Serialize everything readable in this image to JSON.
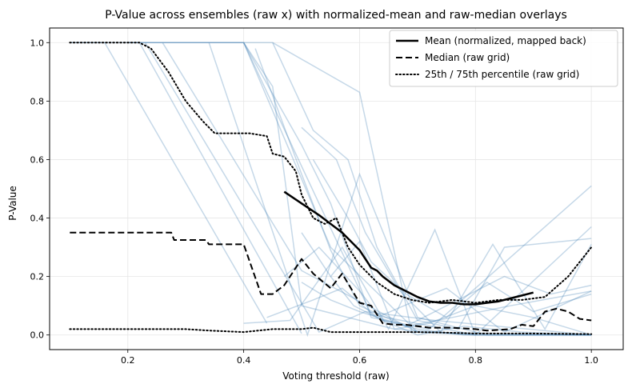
{
  "chart_data": {
    "type": "line",
    "title": "P-Value across ensembles (raw x) with normalized-mean and raw-median overlays",
    "xlabel": "Voting threshold (raw)",
    "ylabel": "P-Value",
    "xlim": [
      0.065,
      1.055
    ],
    "ylim": [
      -0.05,
      1.05
    ],
    "xticks": [
      0.2,
      0.4,
      0.6,
      0.8,
      1.0
    ],
    "xtick_labels": [
      "0.2",
      "0.4",
      "0.6",
      "0.8",
      "1.0"
    ],
    "yticks": [
      0.0,
      0.2,
      0.4,
      0.6,
      0.8,
      1.0
    ],
    "ytick_labels": [
      "0.0",
      "0.2",
      "0.4",
      "0.6",
      "0.8",
      "1.0"
    ],
    "grid": true,
    "legend_position": "top-right",
    "colors": {
      "ensemble": "#4a86b8",
      "overlay": "#000000"
    },
    "series": [
      {
        "name": "Mean (normalized, mapped back)",
        "style": "solid",
        "x": [
          0.47,
          0.5,
          0.53,
          0.55,
          0.57,
          0.59,
          0.6,
          0.61,
          0.62,
          0.63,
          0.64,
          0.66,
          0.68,
          0.7,
          0.72,
          0.74,
          0.76,
          0.78,
          0.8,
          0.82,
          0.84,
          0.86,
          0.88,
          0.9
        ],
        "y": [
          0.49,
          0.45,
          0.41,
          0.38,
          0.35,
          0.31,
          0.29,
          0.26,
          0.23,
          0.22,
          0.2,
          0.17,
          0.15,
          0.13,
          0.115,
          0.11,
          0.11,
          0.105,
          0.105,
          0.11,
          0.115,
          0.125,
          0.135,
          0.145
        ]
      },
      {
        "name": "Median (raw grid)",
        "style": "dashed",
        "x": [
          0.1,
          0.275,
          0.28,
          0.335,
          0.34,
          0.4,
          0.43,
          0.45,
          0.47,
          0.5,
          0.52,
          0.55,
          0.57,
          0.6,
          0.62,
          0.64,
          0.66,
          0.68,
          0.7,
          0.72,
          0.74,
          0.76,
          0.8,
          0.82,
          0.86,
          0.88,
          0.9,
          0.92,
          0.94,
          0.96,
          0.98,
          1.0
        ],
        "y": [
          0.35,
          0.35,
          0.325,
          0.325,
          0.31,
          0.31,
          0.14,
          0.14,
          0.17,
          0.26,
          0.21,
          0.16,
          0.21,
          0.11,
          0.1,
          0.04,
          0.035,
          0.035,
          0.03,
          0.025,
          0.025,
          0.025,
          0.02,
          0.015,
          0.02,
          0.035,
          0.03,
          0.08,
          0.09,
          0.08,
          0.055,
          0.05
        ]
      },
      {
        "name": "25th / 75th percentile (raw grid)",
        "style": "dotted",
        "x": [
          0.1,
          0.22,
          0.24,
          0.27,
          0.3,
          0.33,
          0.35,
          0.38,
          0.41,
          0.44,
          0.45,
          0.47,
          0.49,
          0.5,
          0.52,
          0.54,
          0.56,
          0.58,
          0.6,
          0.63,
          0.66,
          0.69,
          0.72,
          0.76,
          0.8,
          0.84,
          0.88,
          0.92,
          0.96,
          1.0
        ],
        "y": [
          1.0,
          1.0,
          0.98,
          0.9,
          0.8,
          0.73,
          0.69,
          0.69,
          0.69,
          0.68,
          0.62,
          0.61,
          0.56,
          0.48,
          0.4,
          0.38,
          0.4,
          0.3,
          0.24,
          0.18,
          0.14,
          0.12,
          0.11,
          0.12,
          0.11,
          0.12,
          0.12,
          0.13,
          0.2,
          0.3
        ]
      },
      {
        "name": "",
        "style": "dotted",
        "x": [
          0.1,
          0.2,
          0.3,
          0.34,
          0.4,
          0.45,
          0.5,
          0.52,
          0.55,
          0.6,
          0.65,
          0.7,
          0.75,
          0.8,
          0.85,
          0.9,
          0.95,
          1.0
        ],
        "y": [
          0.02,
          0.02,
          0.02,
          0.015,
          0.01,
          0.02,
          0.02,
          0.025,
          0.01,
          0.01,
          0.01,
          0.01,
          0.008,
          0.005,
          0.005,
          0.005,
          0.004,
          0.003
        ]
      }
    ],
    "ensemble_series": [
      {
        "x": [
          0.1,
          0.16,
          0.44
        ],
        "y": [
          1.0,
          1.0,
          0.04
        ]
      },
      {
        "x": [
          0.1,
          0.22,
          0.5
        ],
        "y": [
          1.0,
          1.0,
          0.005
        ]
      },
      {
        "x": [
          0.2,
          0.4,
          0.55,
          0.7
        ],
        "y": [
          1.0,
          1.0,
          0.3,
          0.01
        ]
      },
      {
        "x": [
          0.2,
          0.4,
          0.53,
          0.62,
          0.8
        ],
        "y": [
          1.0,
          1.0,
          0.45,
          0.07,
          0.0
        ]
      },
      {
        "x": [
          0.2,
          0.45,
          0.6,
          0.69,
          1.0
        ],
        "y": [
          1.0,
          1.0,
          0.83,
          0.01,
          0.0
        ]
      },
      {
        "x": [
          0.23,
          0.53,
          0.61,
          0.73,
          1.0
        ],
        "y": [
          1.0,
          0.01,
          0.08,
          0.05,
          0.0
        ]
      },
      {
        "x": [
          0.26,
          0.5,
          0.7,
          0.8,
          1.0
        ],
        "y": [
          1.0,
          0.22,
          0.01,
          0.0,
          0.0
        ]
      },
      {
        "x": [
          0.34,
          0.51,
          0.6,
          0.7,
          0.82,
          1.0
        ],
        "y": [
          1.0,
          0.0,
          0.55,
          0.06,
          0.0,
          0.0
        ]
      },
      {
        "x": [
          0.4,
          0.5,
          0.55,
          0.62,
          0.72,
          1.0
        ],
        "y": [
          1.0,
          0.65,
          0.45,
          0.06,
          0.02,
          0.51
        ]
      },
      {
        "x": [
          0.4,
          0.45,
          0.5,
          0.66,
          0.8,
          1.0
        ],
        "y": [
          1.0,
          0.85,
          0.1,
          0.02,
          0.0,
          0.37
        ]
      },
      {
        "x": [
          0.4,
          0.48,
          0.57,
          0.65,
          0.73,
          0.8,
          1.0
        ],
        "y": [
          0.04,
          0.05,
          0.3,
          0.02,
          0.36,
          0.0,
          0.0
        ]
      },
      {
        "x": [
          0.42,
          0.5,
          0.55,
          0.6,
          0.68,
          0.76,
          0.86,
          1.0
        ],
        "y": [
          0.98,
          0.55,
          0.29,
          0.1,
          0.03,
          0.06,
          0.1,
          0.15
        ]
      },
      {
        "x": [
          0.45,
          0.52,
          0.58,
          0.63,
          0.7,
          0.77,
          0.85,
          1.0
        ],
        "y": [
          1.0,
          0.7,
          0.6,
          0.3,
          0.05,
          0.02,
          0.3,
          0.33
        ]
      },
      {
        "x": [
          0.5,
          0.56,
          0.61,
          0.67,
          0.74,
          0.83,
          0.92,
          1.0
        ],
        "y": [
          0.71,
          0.6,
          0.35,
          0.15,
          0.01,
          0.31,
          0.02,
          0.31
        ]
      },
      {
        "x": [
          0.5,
          0.55,
          0.6,
          0.66,
          0.72,
          0.8,
          0.9,
          1.0
        ],
        "y": [
          0.35,
          0.2,
          0.32,
          0.02,
          0.04,
          0.1,
          0.06,
          0.0
        ]
      },
      {
        "x": [
          0.44,
          0.52,
          0.57,
          0.63,
          0.7,
          0.75,
          0.85,
          1.0
        ],
        "y": [
          0.06,
          0.12,
          0.16,
          0.06,
          0.12,
          0.16,
          0.01,
          0.15
        ]
      },
      {
        "x": [
          0.5,
          0.55,
          0.6,
          0.68,
          0.77,
          0.85,
          0.93,
          1.0
        ],
        "y": [
          0.18,
          0.12,
          0.08,
          0.03,
          0.12,
          0.2,
          0.14,
          0.17
        ]
      },
      {
        "x": [
          0.52,
          0.58,
          0.62,
          0.68,
          0.75,
          0.82,
          0.9,
          1.0
        ],
        "y": [
          0.6,
          0.4,
          0.25,
          0.14,
          0.06,
          0.18,
          0.08,
          0.14
        ]
      },
      {
        "x": [
          0.47,
          0.53,
          0.6,
          0.64,
          0.7,
          0.78,
          0.88,
          1.0
        ],
        "y": [
          0.2,
          0.3,
          0.15,
          0.05,
          0.0,
          0.03,
          0.01,
          0.0
        ]
      },
      {
        "x": [
          0.55,
          0.59,
          0.64,
          0.7,
          0.78,
          0.88,
          1.0
        ],
        "y": [
          0.2,
          0.1,
          0.05,
          0.02,
          0.0,
          0.0,
          0.0
        ]
      }
    ]
  }
}
